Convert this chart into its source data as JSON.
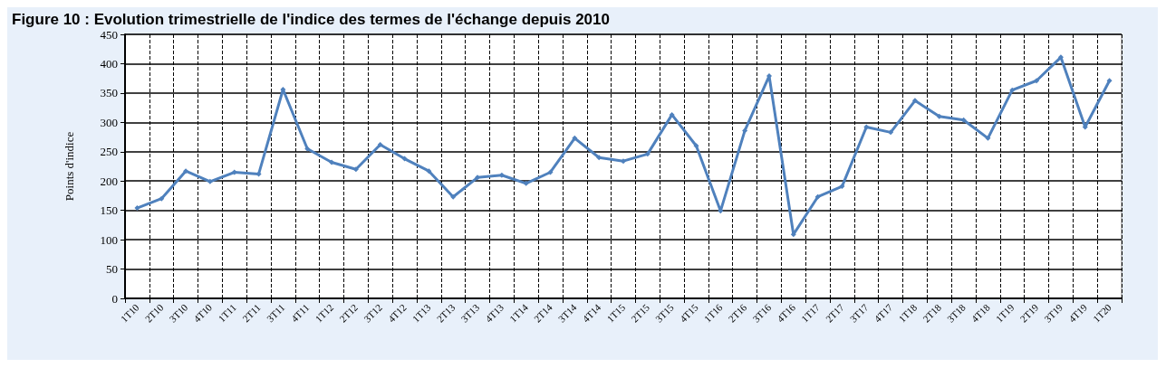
{
  "chart_data": {
    "type": "line",
    "title": "Figure 10 : Evolution trimestrielle de l'indice des termes de l'échange depuis 2010",
    "ylabel": "Points d'indice",
    "categories": [
      "1T10",
      "2T10",
      "3T10",
      "4T10",
      "1T11",
      "2T11",
      "3T11",
      "4T11",
      "1T12",
      "2T12",
      "3T12",
      "4T12",
      "1T13",
      "2T13",
      "3T13",
      "4T13",
      "1T14",
      "2T14",
      "3T14",
      "4T14",
      "1T15",
      "2T15",
      "3T15",
      "4T15",
      "1T16",
      "2T16",
      "3T16",
      "4T16",
      "1T17",
      "2T17",
      "3T17",
      "4T17",
      "1T18",
      "2T18",
      "3T18",
      "4T18",
      "1T19",
      "2T19",
      "3T19",
      "4T19",
      "1T20"
    ],
    "series": [
      {
        "color": "#4f81bd",
        "values": [
          154,
          170,
          217,
          199,
          215,
          212,
          356,
          255,
          232,
          220,
          262,
          238,
          217,
          173,
          206,
          210,
          196,
          215,
          273,
          240,
          234,
          246,
          313,
          260,
          149,
          286,
          379,
          109,
          173,
          191,
          292,
          283,
          337,
          310,
          304,
          273,
          355,
          371,
          411,
          292,
          371
        ]
      }
    ],
    "ylim": [
      0,
      450
    ],
    "yticks": [
      0,
      50,
      100,
      150,
      200,
      250,
      300,
      350,
      400,
      450
    ],
    "grid": true,
    "marker": "diamond",
    "line_style": "solid"
  }
}
